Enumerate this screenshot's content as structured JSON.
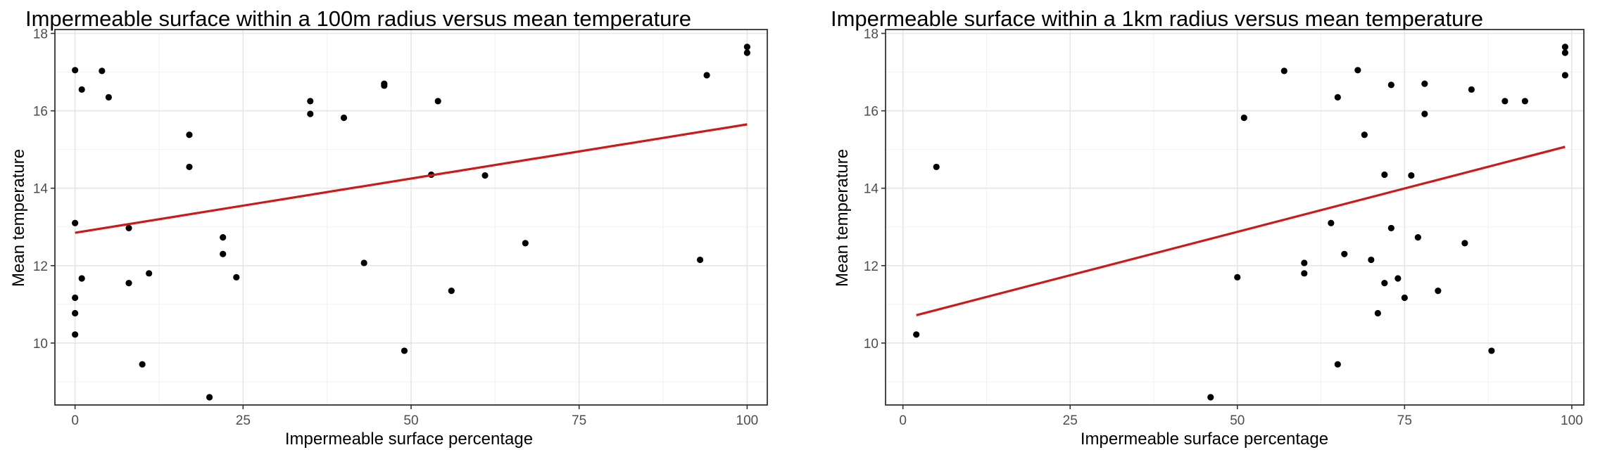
{
  "chart_data": [
    {
      "type": "scatter",
      "title": "Impermeable surface within a 100m radius versus mean temperature",
      "xlabel": "Impermeable surface percentage",
      "ylabel": "Mean temperature",
      "xlim": [
        -3,
        103
      ],
      "ylim": [
        8.4,
        18.1
      ],
      "xticks": [
        0,
        25,
        50,
        75,
        100
      ],
      "xtick_labels": [
        "0",
        "25",
        "50",
        "75",
        "100"
      ],
      "yticks": [
        10,
        12,
        14,
        16,
        18
      ],
      "ytick_labels": [
        "10",
        "12",
        "14",
        "16",
        "18"
      ],
      "grid": true,
      "point_color": "#000000",
      "line_color": "#cc1a1a",
      "points": [
        {
          "x": 0,
          "y": 17.05
        },
        {
          "x": 0,
          "y": 13.1
        },
        {
          "x": 0,
          "y": 11.17
        },
        {
          "x": 0,
          "y": 10.77
        },
        {
          "x": 0,
          "y": 10.22
        },
        {
          "x": 1,
          "y": 16.55
        },
        {
          "x": 1,
          "y": 11.67
        },
        {
          "x": 4,
          "y": 17.03
        },
        {
          "x": 5,
          "y": 16.35
        },
        {
          "x": 8,
          "y": 12.97
        },
        {
          "x": 8,
          "y": 11.55
        },
        {
          "x": 10,
          "y": 9.45
        },
        {
          "x": 11,
          "y": 11.8
        },
        {
          "x": 17,
          "y": 15.38
        },
        {
          "x": 17,
          "y": 14.55
        },
        {
          "x": 20,
          "y": 8.6
        },
        {
          "x": 22,
          "y": 12.73
        },
        {
          "x": 22,
          "y": 12.3
        },
        {
          "x": 24,
          "y": 11.7
        },
        {
          "x": 35,
          "y": 16.25
        },
        {
          "x": 35,
          "y": 15.92
        },
        {
          "x": 40,
          "y": 15.82
        },
        {
          "x": 43,
          "y": 12.07
        },
        {
          "x": 46,
          "y": 16.7
        },
        {
          "x": 46,
          "y": 16.65
        },
        {
          "x": 49,
          "y": 9.8
        },
        {
          "x": 53,
          "y": 14.35
        },
        {
          "x": 54,
          "y": 16.25
        },
        {
          "x": 56,
          "y": 11.35
        },
        {
          "x": 61,
          "y": 14.33
        },
        {
          "x": 67,
          "y": 12.58
        },
        {
          "x": 93,
          "y": 12.15
        },
        {
          "x": 94,
          "y": 16.92
        },
        {
          "x": 100,
          "y": 17.65
        },
        {
          "x": 100,
          "y": 17.5
        }
      ],
      "trend_line": {
        "x": [
          0,
          100
        ],
        "y": [
          12.85,
          15.65
        ]
      }
    },
    {
      "type": "scatter",
      "title": "Impermeable surface within a 1km radius versus mean temperature",
      "xlabel": "Impermeable surface percentage",
      "ylabel": "Mean temperature",
      "xlim": [
        -2.6,
        101.8
      ],
      "ylim": [
        8.4,
        18.1
      ],
      "xticks": [
        0,
        25,
        50,
        75,
        100
      ],
      "xtick_labels": [
        "0",
        "25",
        "50",
        "75",
        "100"
      ],
      "yticks": [
        10,
        12,
        14,
        16,
        18
      ],
      "ytick_labels": [
        "10",
        "12",
        "14",
        "16",
        "18"
      ],
      "grid": true,
      "point_color": "#000000",
      "line_color": "#cc1a1a",
      "points": [
        {
          "x": 2,
          "y": 10.22
        },
        {
          "x": 5,
          "y": 14.55
        },
        {
          "x": 46,
          "y": 8.6
        },
        {
          "x": 50,
          "y": 11.7
        },
        {
          "x": 51,
          "y": 15.82
        },
        {
          "x": 57,
          "y": 17.03
        },
        {
          "x": 60,
          "y": 12.07
        },
        {
          "x": 60,
          "y": 11.8
        },
        {
          "x": 64,
          "y": 13.1
        },
        {
          "x": 65,
          "y": 16.35
        },
        {
          "x": 65,
          "y": 9.45
        },
        {
          "x": 66,
          "y": 12.3
        },
        {
          "x": 68,
          "y": 17.05
        },
        {
          "x": 69,
          "y": 15.38
        },
        {
          "x": 70,
          "y": 12.15
        },
        {
          "x": 71,
          "y": 10.77
        },
        {
          "x": 72,
          "y": 14.35
        },
        {
          "x": 72,
          "y": 11.55
        },
        {
          "x": 73,
          "y": 16.67
        },
        {
          "x": 73,
          "y": 12.97
        },
        {
          "x": 74,
          "y": 11.67
        },
        {
          "x": 75,
          "y": 11.17
        },
        {
          "x": 76,
          "y": 14.33
        },
        {
          "x": 77,
          "y": 12.73
        },
        {
          "x": 78,
          "y": 16.7
        },
        {
          "x": 78,
          "y": 15.92
        },
        {
          "x": 80,
          "y": 11.35
        },
        {
          "x": 84,
          "y": 12.58
        },
        {
          "x": 85,
          "y": 16.55
        },
        {
          "x": 88,
          "y": 9.8
        },
        {
          "x": 90,
          "y": 16.25
        },
        {
          "x": 93,
          "y": 16.25
        },
        {
          "x": 99,
          "y": 17.65
        },
        {
          "x": 99,
          "y": 17.5
        },
        {
          "x": 99,
          "y": 16.92
        }
      ],
      "trend_line": {
        "x": [
          2,
          99
        ],
        "y": [
          10.72,
          15.07
        ]
      }
    }
  ]
}
